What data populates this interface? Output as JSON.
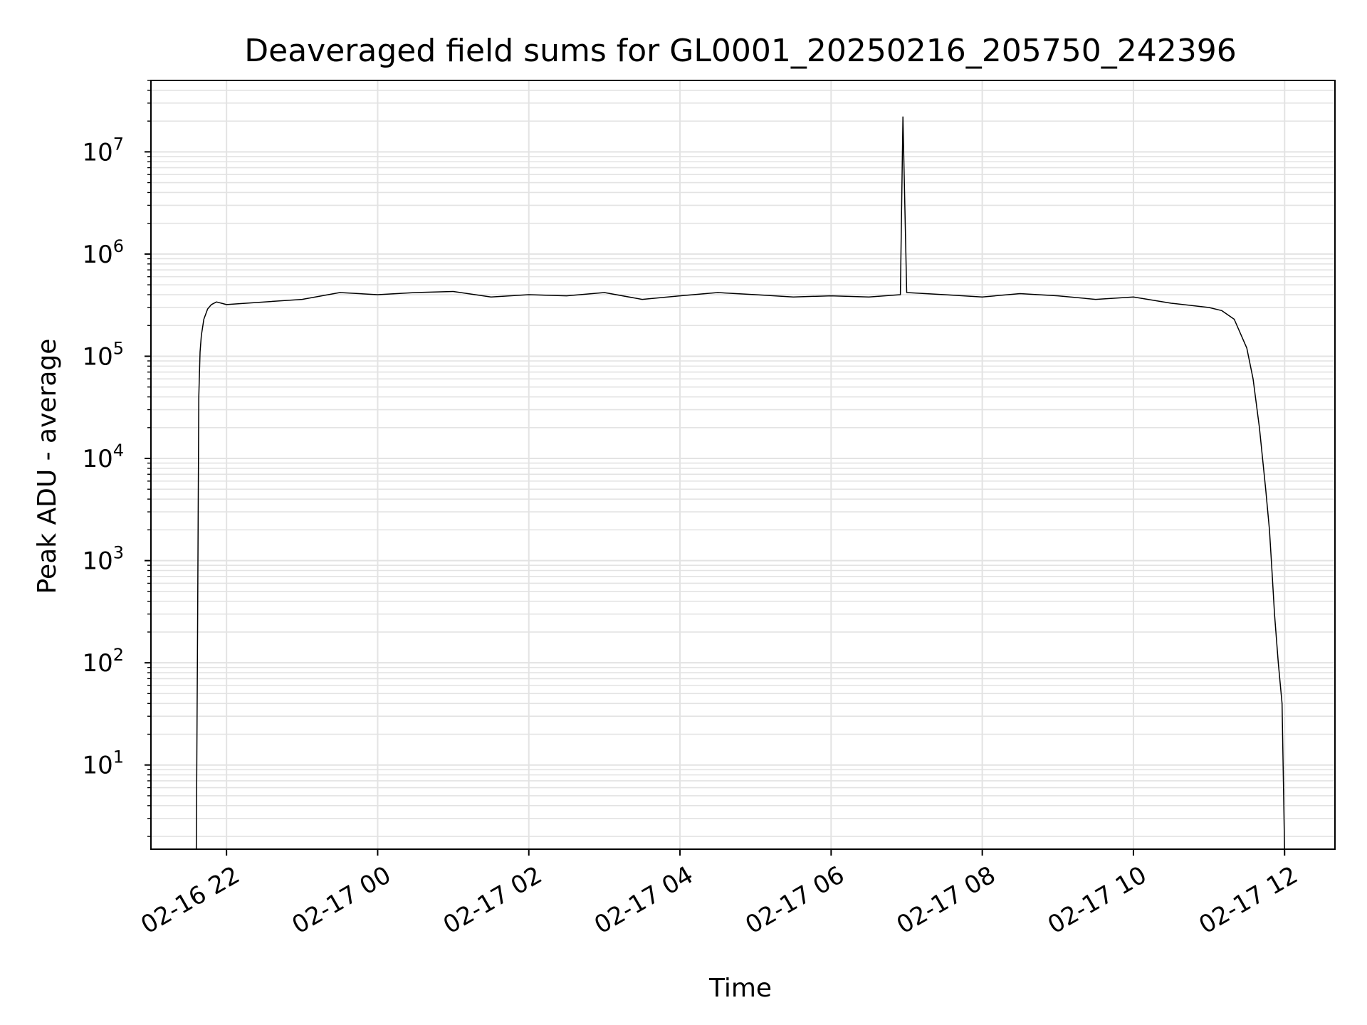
{
  "chart_data": {
    "type": "line",
    "title": "Deaveraged field sums for GL0001_20250216_205750_242396",
    "xlabel": "Time",
    "ylabel": "Peak ADU - average",
    "yscale": "log",
    "ylim": [
      1.5,
      50000000
    ],
    "xlim": [
      "02-16 21:00",
      "02-17 12:40"
    ],
    "grid": true,
    "line_color": "#000000",
    "x_tick_labels": [
      "02-16 22",
      "02-17 00",
      "02-17 02",
      "02-17 04",
      "02-17 06",
      "02-17 08",
      "02-17 10",
      "02-17 12"
    ],
    "y_tick_labels": [
      {
        "base": "10",
        "exp": "1"
      },
      {
        "base": "10",
        "exp": "2"
      },
      {
        "base": "10",
        "exp": "3"
      },
      {
        "base": "10",
        "exp": "4"
      },
      {
        "base": "10",
        "exp": "5"
      },
      {
        "base": "10",
        "exp": "6"
      },
      {
        "base": "10",
        "exp": "7"
      }
    ],
    "series": [
      {
        "x": [
          "02-16 21:36",
          "02-16 21:37",
          "02-16 21:38",
          "02-16 21:39",
          "02-16 21:40",
          "02-16 21:42",
          "02-16 21:45",
          "02-16 21:48",
          "02-16 21:52",
          "02-16 21:56",
          "02-16 22:00",
          "02-16 22:30",
          "02-16 23:00",
          "02-16 23:30",
          "02-17 00:00",
          "02-17 00:30",
          "02-17 01:00",
          "02-17 01:30",
          "02-17 02:00",
          "02-17 02:30",
          "02-17 03:00",
          "02-17 03:30",
          "02-17 04:00",
          "02-17 04:30",
          "02-17 05:00",
          "02-17 05:30",
          "02-17 06:00",
          "02-17 06:30",
          "02-17 06:55",
          "02-17 06:57",
          "02-17 07:00",
          "02-17 07:30",
          "02-17 08:00",
          "02-17 08:30",
          "02-17 09:00",
          "02-17 09:30",
          "02-17 10:00",
          "02-17 10:30",
          "02-17 11:00",
          "02-17 11:10",
          "02-17 11:20",
          "02-17 11:30",
          "02-17 11:35",
          "02-17 11:40",
          "02-17 11:45",
          "02-17 11:48",
          "02-17 11:50",
          "02-17 11:52",
          "02-17 11:55",
          "02-17 11:58",
          "02-17 12:00"
        ],
        "values": [
          1.5,
          200,
          40000,
          110000,
          160000,
          230000,
          290000,
          320000,
          340000,
          330000,
          320000,
          340000,
          360000,
          420000,
          400000,
          420000,
          430000,
          380000,
          400000,
          390000,
          420000,
          360000,
          390000,
          420000,
          400000,
          380000,
          390000,
          380000,
          400000,
          22000000,
          420000,
          400000,
          380000,
          410000,
          390000,
          360000,
          380000,
          330000,
          300000,
          280000,
          230000,
          120000,
          60000,
          20000,
          5000,
          2000,
          800,
          300,
          100,
          40,
          1.5
        ]
      }
    ]
  }
}
